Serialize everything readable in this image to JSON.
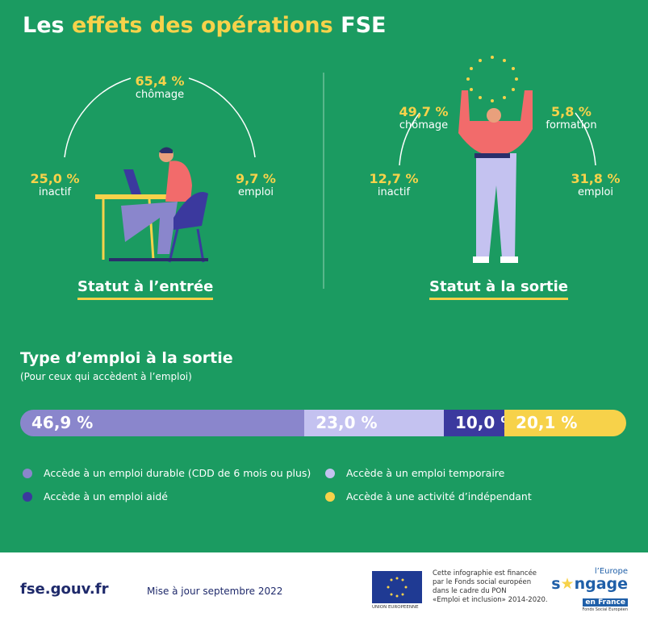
{
  "title": {
    "part1": "Les",
    "highlight": "effets des opérations",
    "part2": "FSE"
  },
  "entry": {
    "heading": "Statut à l’entrée",
    "items": [
      {
        "value": "65,4 %",
        "label": "chômage"
      },
      {
        "value": "25,0 %",
        "label": "inactif"
      },
      {
        "value": "9,7 %",
        "label": "emploi"
      }
    ]
  },
  "exit": {
    "heading": "Statut à la sortie",
    "items": [
      {
        "value": "49,7 %",
        "label": "chômage"
      },
      {
        "value": "5,8 %",
        "label": "formation"
      },
      {
        "value": "12,7 %",
        "label": "inactif"
      },
      {
        "value": "31,8 %",
        "label": "emploi"
      }
    ]
  },
  "chart_data": {
    "type": "bar",
    "stacked": true,
    "title": "Type d’emploi à la sortie",
    "subtitle": "(Pour ceux qui accèdent à l’emploi)",
    "series": [
      {
        "name": "Accède à un emploi durable (CDD de 6 mois ou plus)",
        "value": 46.9,
        "label": "46,9 %",
        "color": "#8a86cc"
      },
      {
        "name": "Accède à un emploi temporaire",
        "value": 23.0,
        "label": "23,0 %",
        "color": "#c4c2f0"
      },
      {
        "name": "Accède à un emploi aidé",
        "value": 10.0,
        "label": "10,0 %",
        "color": "#3b399e"
      },
      {
        "name": "Accède à une activité d’indépendant",
        "value": 20.1,
        "label": "20,1 %",
        "color": "#f7d24a"
      }
    ]
  },
  "footer": {
    "site": "fse.gouv.fr",
    "update": "Mise à jour septembre 2022",
    "eu_label": "UNION EUROPEENNE",
    "funding": [
      "Cette infographie est financée",
      "par le Fonds social européen",
      "dans le cadre du PON",
      "«Emploi et inclusion» 2014-2020."
    ],
    "logo_text": "l’Europe s’engage en France Fonds Social Européen"
  }
}
